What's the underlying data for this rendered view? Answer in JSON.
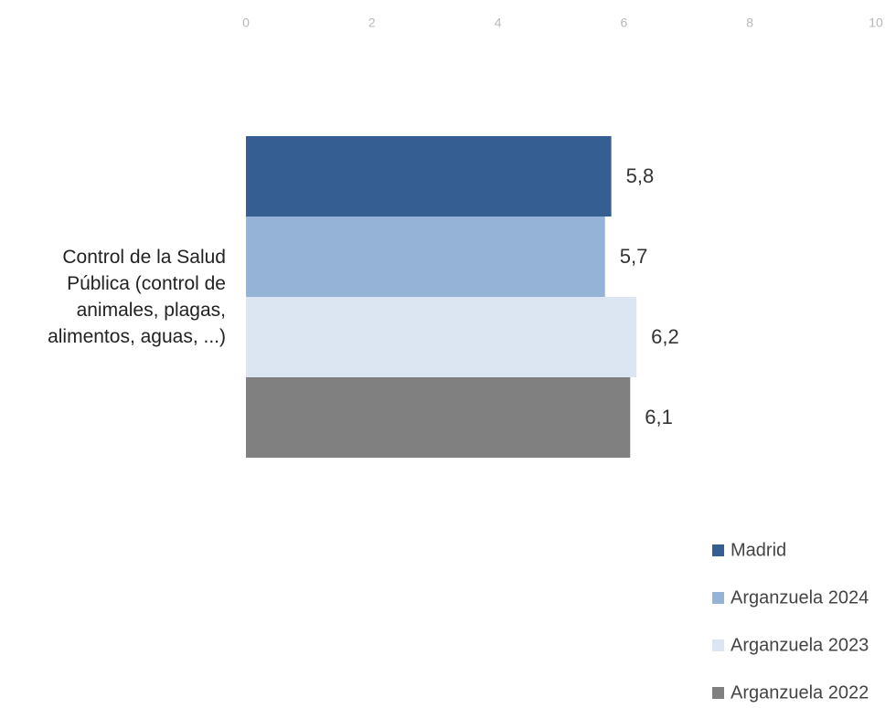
{
  "chart_data": {
    "type": "bar",
    "orientation": "horizontal",
    "categories": [
      "Control de la Salud Pública (control de animales, plagas, alimentos, aguas, ...)"
    ],
    "series": [
      {
        "name": "Madrid",
        "color": "#355f93",
        "values": [
          5.8
        ],
        "value_labels": [
          "5,8"
        ]
      },
      {
        "name": "Arganzuela 2024",
        "color": "#95b3d7",
        "values": [
          5.7
        ],
        "value_labels": [
          "5,7"
        ]
      },
      {
        "name": "Arganzuela 2023",
        "color": "#dce6f2",
        "values": [
          6.2
        ],
        "value_labels": [
          "6,2"
        ]
      },
      {
        "name": "Arganzuela 2022",
        "color": "#808080",
        "values": [
          6.1
        ],
        "value_labels": [
          "6,1"
        ]
      }
    ],
    "xlim": [
      0,
      10
    ],
    "xticks": [
      0,
      2,
      4,
      6,
      8,
      10
    ],
    "grid": false,
    "legend": "bottom-right"
  }
}
